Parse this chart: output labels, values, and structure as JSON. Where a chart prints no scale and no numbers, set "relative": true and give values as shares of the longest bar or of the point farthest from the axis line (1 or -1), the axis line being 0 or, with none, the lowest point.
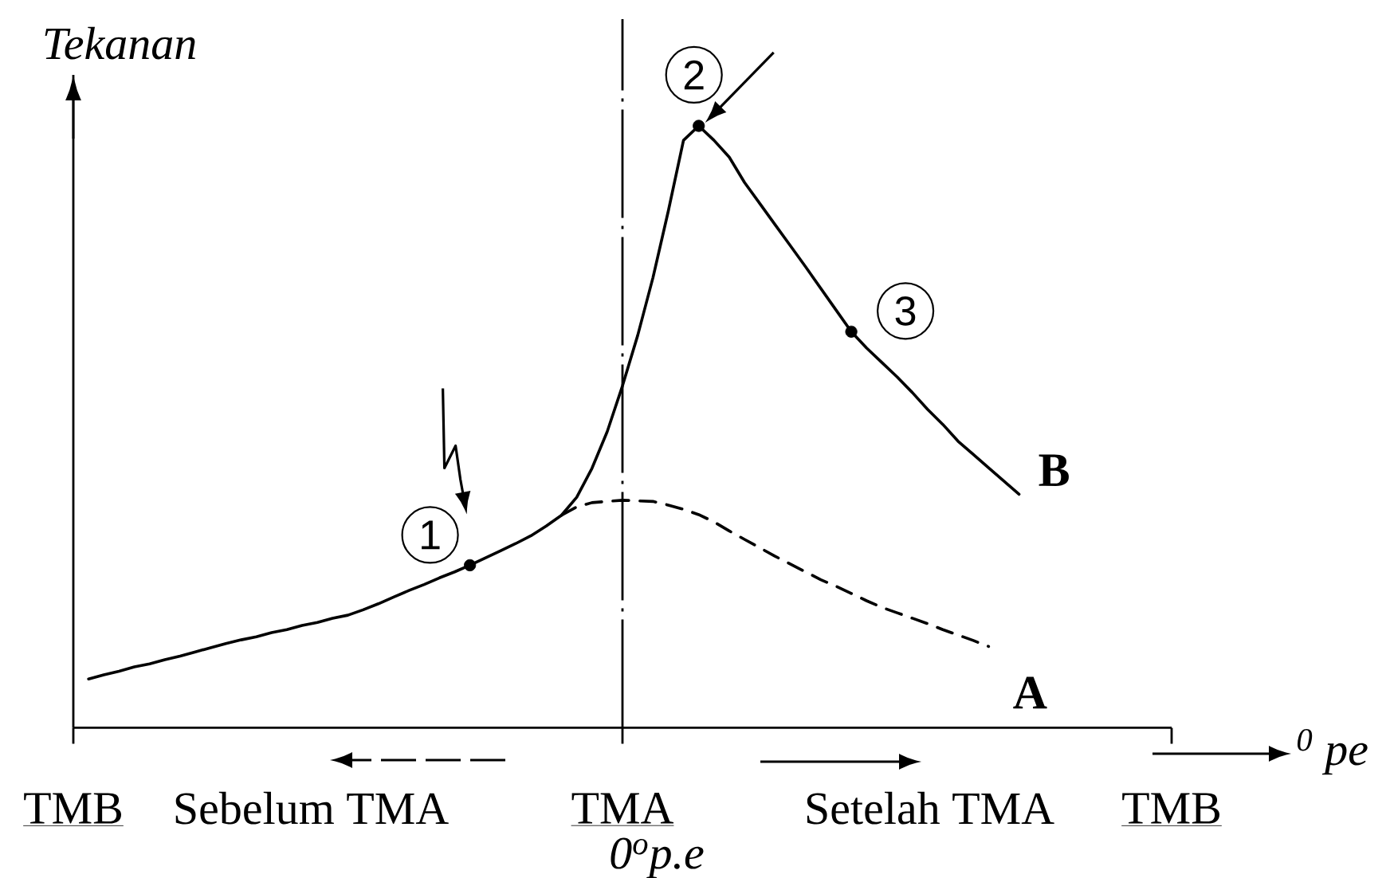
{
  "chart_data": {
    "type": "line",
    "relative": true,
    "ylabel": "Tekanan",
    "xlabel": "$^{0}$ pe",
    "categories": [
      "TMB",
      null,
      null,
      null,
      null,
      null,
      null,
      null,
      null,
      null,
      null,
      null,
      null,
      null,
      null,
      null,
      null,
      null,
      null,
      null,
      null,
      null,
      null,
      null,
      null,
      null,
      null,
      null,
      null,
      null,
      null,
      null,
      null,
      null,
      null,
      null,
      "TMA",
      null,
      null,
      null,
      null,
      null,
      null,
      null,
      null,
      null,
      null,
      null,
      null,
      null,
      null,
      null,
      null,
      null,
      null,
      null,
      null,
      null,
      null,
      null,
      null,
      null,
      null,
      null,
      null,
      null,
      null,
      null,
      null,
      null,
      null,
      null,
      "TMB"
    ],
    "tick_labels": "x",
    "series": [
      {
        "name": "B",
        "color": "#000000",
        "line_style": "solid",
        "values": [
          null,
          0.081,
          0.088,
          0.094,
          0.101,
          0.106,
          0.113,
          0.119,
          0.126,
          0.133,
          0.14,
          0.146,
          0.151,
          0.158,
          0.163,
          0.17,
          0.175,
          0.182,
          0.187,
          0.196,
          0.206,
          0.217,
          0.228,
          0.238,
          0.249,
          0.259,
          0.27,
          0.282,
          0.294,
          0.306,
          0.319,
          0.335,
          0.353,
          0.383,
          0.431,
          0.492,
          0.568,
          0.652,
          0.748,
          0.858,
          0.976,
          1.0,
          0.976,
          0.948,
          0.906,
          0.871,
          0.836,
          0.801,
          0.766,
          0.73,
          0.694,
          0.658,
          0.631,
          0.607,
          0.583,
          0.557,
          0.529,
          0.504,
          0.476,
          0.454,
          0.432,
          0.41,
          0.388,
          null,
          null,
          null,
          null,
          null,
          null,
          null,
          null,
          null,
          null
        ]
      },
      {
        "name": "A",
        "color": "#000000",
        "line_style": "dashed",
        "values": [
          null,
          null,
          null,
          null,
          null,
          null,
          null,
          null,
          null,
          null,
          null,
          null,
          null,
          null,
          null,
          null,
          null,
          null,
          null,
          null,
          null,
          null,
          null,
          null,
          null,
          null,
          null,
          null,
          null,
          null,
          null,
          null,
          0.353,
          0.367,
          0.374,
          0.376,
          0.378,
          0.377,
          0.376,
          0.37,
          0.363,
          0.354,
          0.342,
          0.327,
          0.313,
          0.299,
          0.285,
          0.272,
          0.259,
          0.246,
          0.235,
          0.223,
          0.211,
          0.2,
          0.191,
          0.182,
          0.173,
          0.163,
          0.154,
          0.145,
          0.135,
          null,
          null,
          null,
          null,
          null,
          null,
          null,
          null,
          null,
          null,
          null,
          null
        ]
      },
      {
        "type": "scatter",
        "color": "#000000",
        "marker": "circle",
        "values": [
          null,
          null,
          null,
          null,
          null,
          null,
          null,
          null,
          null,
          null,
          null,
          null,
          null,
          null,
          null,
          null,
          null,
          null,
          null,
          null,
          null,
          null,
          null,
          null,
          null,
          null,
          0.27,
          null,
          null,
          null,
          null,
          null,
          null,
          null,
          null,
          null,
          null,
          null,
          null,
          null,
          null,
          1.0,
          null,
          null,
          null,
          null,
          null,
          null,
          null,
          null,
          null,
          0.658,
          null,
          null,
          null,
          null,
          null,
          null,
          null,
          null,
          null,
          null,
          null,
          null,
          null,
          null,
          null,
          null,
          null,
          null,
          null,
          null,
          null
        ]
      }
    ],
    "ref_lines": [
      {
        "axis": "x",
        "value": "TMA",
        "line_style": "dashdot",
        "color": "#000000"
      }
    ],
    "annotations": [
      "1",
      "2",
      "3",
      "Sebelum TMA",
      "Setelah TMA",
      "0$^{o}$p.e"
    ]
  }
}
